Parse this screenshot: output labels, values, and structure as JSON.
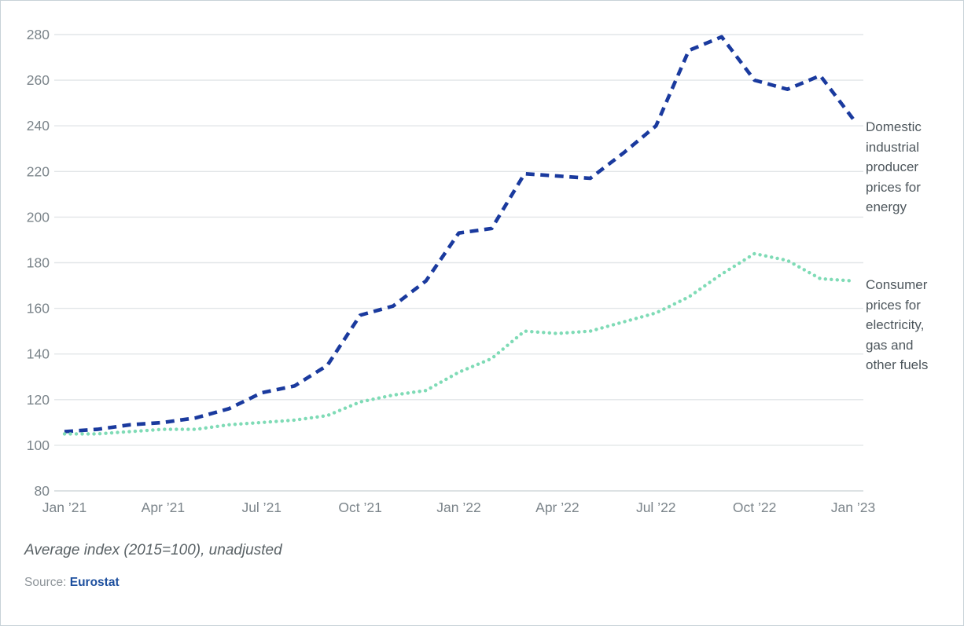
{
  "chart_data": {
    "type": "line",
    "title": "",
    "categories": [
      "Jan 2021",
      "Feb 2021",
      "Mar 2021",
      "Apr 2021",
      "May 2021",
      "Jun 2021",
      "Jul 2021",
      "Aug 2021",
      "Sep 2021",
      "Oct 2021",
      "Nov 2021",
      "Dec 2021",
      "Jan 2022",
      "Feb 2022",
      "Mar 2022",
      "Apr 2022",
      "May 2022",
      "Jun 2022",
      "Jul 2022",
      "Aug 2022",
      "Sep 2022",
      "Oct 2022",
      "Nov 2022",
      "Dec 2022",
      "Jan 2023"
    ],
    "series": [
      {
        "name": "Domestic industrial producer prices for energy",
        "style": "dashed",
        "color": "#1a3a9e",
        "values": [
          106,
          107,
          109,
          110,
          112,
          116,
          123,
          126,
          135,
          157,
          161,
          172,
          193,
          195,
          219,
          218,
          217,
          228,
          240,
          273,
          279,
          260,
          256,
          262,
          243
        ]
      },
      {
        "name": "Consumer prices for electricity, gas and other fuels",
        "style": "dotted",
        "color": "#7fdbb6",
        "values": [
          105,
          105,
          106,
          107,
          107,
          109,
          110,
          111,
          113,
          119,
          122,
          124,
          132,
          138,
          150,
          149,
          150,
          154,
          158,
          165,
          175,
          184,
          181,
          173,
          172
        ]
      }
    ],
    "x_tick_labels": [
      "Jan ’21",
      "Apr ’21",
      "Jul ’21",
      "Oct ’21",
      "Jan ’22",
      "Apr ’22",
      "Jul ’22",
      "Oct ’22",
      "Jan ’23"
    ],
    "x_tick_indices": [
      0,
      3,
      6,
      9,
      12,
      15,
      18,
      21,
      24
    ],
    "y_ticks": [
      80,
      100,
      120,
      140,
      160,
      180,
      200,
      220,
      240,
      260,
      280
    ],
    "ylim": [
      80,
      287
    ],
    "grid": "horizontal",
    "gridline_color": "#e2e6e8",
    "baseline_color": "#d2d9dc",
    "tick_label_color": "#7b848a",
    "legend_position": "right-annotation-labels"
  },
  "annotations": {
    "producer_label": "Domestic industrial producer prices for energy",
    "consumer_label": "Consumer prices for electricity, gas and other fuels"
  },
  "caption": "Average index (2015=100), unadjusted",
  "source": {
    "prefix": "Source: ",
    "name": "Eurostat",
    "link_color": "#1d4f9e"
  }
}
